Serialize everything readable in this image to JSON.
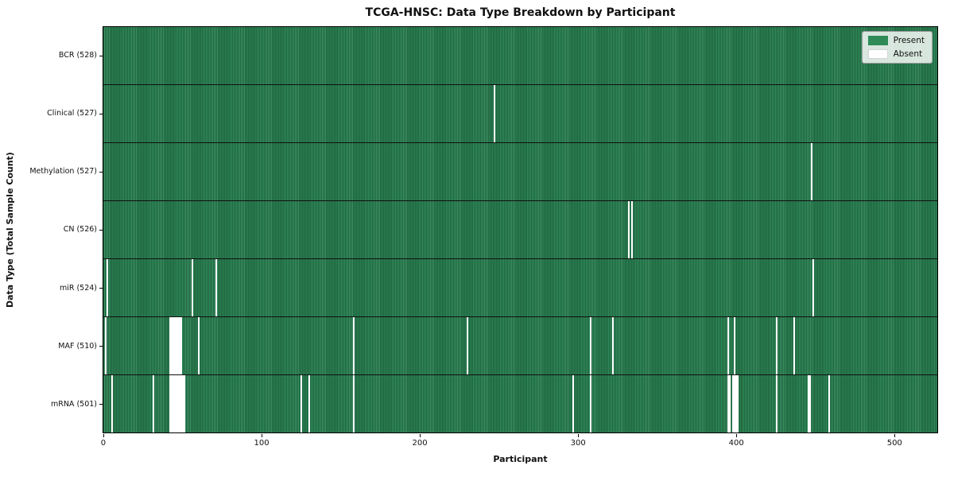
{
  "chart_data": {
    "type": "heatmap",
    "title": "TCGA-HNSC: Data Type Breakdown by Participant",
    "xlabel": "Participant",
    "ylabel": "Data Type (Total Sample Count)",
    "n_participants": 528,
    "x_ticks": [
      0,
      100,
      200,
      300,
      400,
      500
    ],
    "grid": false,
    "legend_position": "upper right",
    "legend": [
      {
        "label": "Present",
        "color": "#2e8b57"
      },
      {
        "label": "Absent",
        "color": "#ffffff"
      }
    ],
    "colors": {
      "present": "#2e8b57",
      "present_edge": "#1f6340",
      "absent": "#ffffff"
    },
    "rows": [
      {
        "key": "bcr",
        "label": "BCR (528)",
        "total": 528,
        "absent": []
      },
      {
        "key": "clinical",
        "label": "Clinical (527)",
        "total": 527,
        "absent": [
          247
        ]
      },
      {
        "key": "methylation",
        "label": "Methylation (527)",
        "total": 527,
        "absent": [
          448
        ]
      },
      {
        "key": "cn",
        "label": "CN (526)",
        "total": 526,
        "absent": [
          332,
          334
        ]
      },
      {
        "key": "mir",
        "label": "miR (524)",
        "total": 524,
        "absent": [
          2,
          56,
          71,
          449
        ]
      },
      {
        "key": "maf",
        "label": "MAF (510)",
        "total": 510,
        "absent": [
          1,
          42,
          43,
          44,
          45,
          46,
          47,
          48,
          49,
          60,
          158,
          230,
          308,
          322,
          395,
          399,
          426,
          437
        ]
      },
      {
        "key": "mrna",
        "label": "mRNA (501)",
        "total": 501,
        "absent": [
          5,
          31,
          42,
          43,
          44,
          45,
          46,
          47,
          48,
          49,
          50,
          51,
          125,
          130,
          158,
          297,
          308,
          395,
          396,
          398,
          399,
          400,
          401,
          426,
          446,
          447,
          459
        ]
      }
    ]
  }
}
